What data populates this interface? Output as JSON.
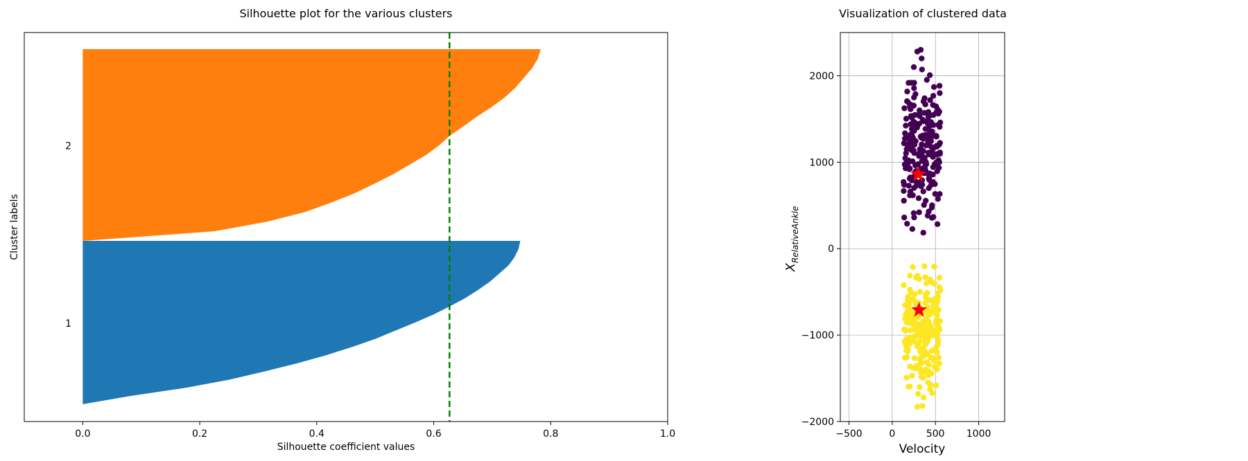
{
  "chart_data": [
    {
      "type": "area",
      "title": "Silhouette plot for the various clusters",
      "xlabel": "Silhouette coefficient values",
      "ylabel": "Cluster labels",
      "xlim": [
        -0.1,
        1.0
      ],
      "xticks": [
        0.0,
        0.2,
        0.4,
        0.6,
        0.8,
        1.0
      ],
      "xtick_labels": [
        "0.0",
        "0.2",
        "0.4",
        "0.6",
        "0.8",
        "1.0"
      ],
      "grid": false,
      "average_silhouette_score": 0.627,
      "clusters": [
        {
          "label": "1",
          "color": "#1f77b4",
          "max_value": 0.748,
          "profile": [
            [
              0.0,
              0.748
            ],
            [
              0.05,
              0.745
            ],
            [
              0.1,
              0.738
            ],
            [
              0.15,
              0.728
            ],
            [
              0.2,
              0.712
            ],
            [
              0.25,
              0.696
            ],
            [
              0.3,
              0.676
            ],
            [
              0.35,
              0.654
            ],
            [
              0.4,
              0.628
            ],
            [
              0.45,
              0.6
            ],
            [
              0.5,
              0.568
            ],
            [
              0.55,
              0.534
            ],
            [
              0.6,
              0.5
            ],
            [
              0.65,
              0.46
            ],
            [
              0.7,
              0.416
            ],
            [
              0.75,
              0.366
            ],
            [
              0.8,
              0.31
            ],
            [
              0.85,
              0.25
            ],
            [
              0.9,
              0.175
            ],
            [
              0.95,
              0.08
            ],
            [
              1.0,
              0.0
            ]
          ]
        },
        {
          "label": "2",
          "color": "#ff7f0e",
          "max_value": 0.783,
          "profile": [
            [
              0.0,
              0.783
            ],
            [
              0.05,
              0.778
            ],
            [
              0.1,
              0.768
            ],
            [
              0.15,
              0.754
            ],
            [
              0.2,
              0.74
            ],
            [
              0.25,
              0.722
            ],
            [
              0.3,
              0.7
            ],
            [
              0.35,
              0.675
            ],
            [
              0.4,
              0.652
            ],
            [
              0.45,
              0.628
            ],
            [
              0.5,
              0.61
            ],
            [
              0.55,
              0.588
            ],
            [
              0.6,
              0.56
            ],
            [
              0.65,
              0.532
            ],
            [
              0.7,
              0.5
            ],
            [
              0.75,
              0.466
            ],
            [
              0.8,
              0.425
            ],
            [
              0.85,
              0.38
            ],
            [
              0.9,
              0.315
            ],
            [
              0.95,
              0.225
            ],
            [
              1.0,
              0.0
            ]
          ]
        }
      ]
    },
    {
      "type": "scatter",
      "title": "Visualization of clustered data",
      "xlabel": "Velocity",
      "ylabel_base": "X",
      "ylabel_sub": "RelativeAnkle",
      "xlim": [
        -600,
        1300
      ],
      "ylim": [
        -2000,
        2500
      ],
      "xticks": [
        -500,
        0,
        500,
        1000
      ],
      "xtick_labels": [
        "−500",
        "0",
        "500",
        "1000"
      ],
      "yticks": [
        -2000,
        -1000,
        0,
        1000,
        2000
      ],
      "ytick_labels": [
        "−2000",
        "−1000",
        "0",
        "1000",
        "2000"
      ],
      "grid": true,
      "clusters": [
        {
          "color": "#440154",
          "count": 230,
          "x_range": [
            130,
            560
          ],
          "y_range": [
            0,
            2300
          ],
          "centroid": [
            300,
            860
          ]
        },
        {
          "color": "#fde725",
          "count": 230,
          "x_range": [
            130,
            560
          ],
          "y_range": [
            -1850,
            0
          ],
          "centroid": [
            310,
            -710
          ]
        }
      ],
      "centroid_marker_color": "#ff0000"
    }
  ]
}
